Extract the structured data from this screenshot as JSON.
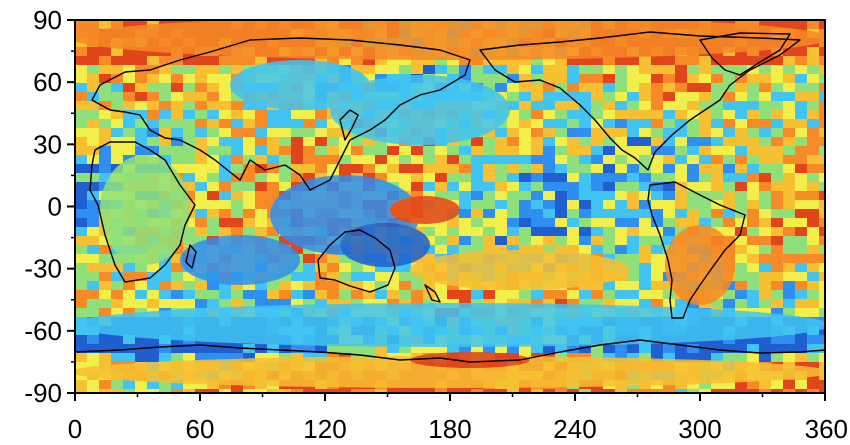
{
  "map": {
    "projection": "equirectangular",
    "colormap": [
      "#1f5fd0",
      "#2f8ff0",
      "#41c4f2",
      "#8fe07a",
      "#f2ee4a",
      "#f7c033",
      "#f58a26",
      "#e2441c"
    ],
    "coastline_color": "#000000"
  },
  "chart_data": {
    "type": "heatmap",
    "title": "",
    "xlabel": "",
    "ylabel": "",
    "xlim": [
      0,
      360
    ],
    "ylim": [
      -90,
      90
    ],
    "x_ticks": [
      "0",
      "60",
      "120",
      "180",
      "240",
      "300",
      "360"
    ],
    "y_ticks": [
      "90",
      "60",
      "30",
      "0",
      "-30",
      "-60",
      "-90"
    ],
    "x_tick_values": [
      0,
      60,
      120,
      180,
      240,
      300,
      360
    ],
    "y_tick_values": [
      90,
      60,
      30,
      0,
      -30,
      -60,
      -90
    ],
    "grid": false,
    "legend": "none"
  }
}
